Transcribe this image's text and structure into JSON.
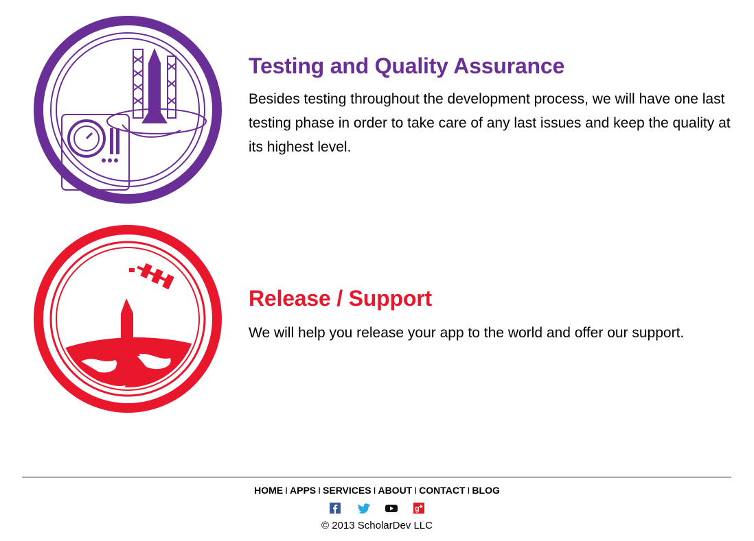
{
  "sections": [
    {
      "title": "Testing and Quality Assurance",
      "body": "Besides testing throughout the development process, we will have one last testing phase in order to take care of any last issues and keep the quality at its highest level.",
      "color": "#6a2f96"
    },
    {
      "title": "Release / Support",
      "body": "We will help you release your app to the world and offer our support.",
      "color": "#e8172b"
    }
  ],
  "footer": {
    "nav": [
      "HOME",
      "APPS",
      "SERVICES",
      "ABOUT",
      "CONTACT",
      "BLOG"
    ],
    "separator": "I",
    "social": [
      "facebook-icon",
      "twitter-icon",
      "youtube-icon",
      "google-plus-icon"
    ],
    "copyright": "© 2013 ScholarDev LLC"
  }
}
